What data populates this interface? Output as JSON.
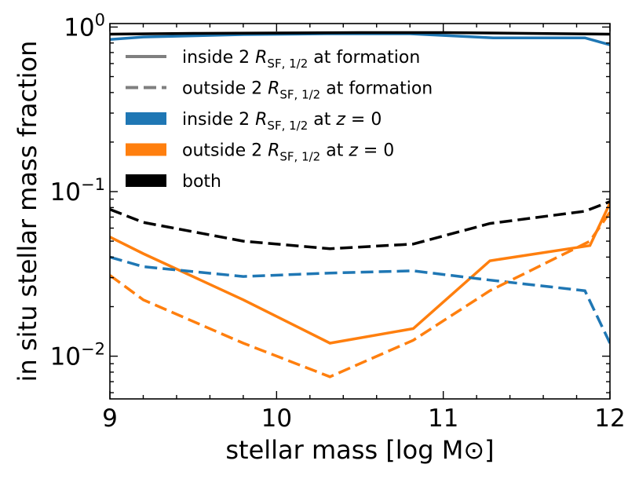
{
  "chart_data": {
    "type": "line",
    "xlabel": "stellar mass [log M⊙]",
    "ylabel": "in situ stellar mass fraction",
    "xlim": [
      9,
      12
    ],
    "ylim": [
      0.0055,
      1.05
    ],
    "yscale": "log",
    "x_ticks": [
      "9",
      "10",
      "11",
      "12"
    ],
    "y_ticks": [
      {
        "value": 1,
        "base": "10",
        "exp": "0"
      },
      {
        "value": 0.1,
        "base": "10",
        "exp": "−1"
      },
      {
        "value": 0.01,
        "base": "10",
        "exp": "−2"
      }
    ],
    "colors": {
      "blue": "#1f77b4",
      "orange": "#ff7f0e",
      "black": "#000000"
    },
    "series": [
      {
        "name": "inside at formation, inside at z=0",
        "color": "blue",
        "style": "solid",
        "x": [
          9.0,
          9.2,
          9.8,
          10.3,
          10.8,
          11.3,
          11.85,
          12.0
        ],
        "y": [
          0.84,
          0.87,
          0.9,
          0.91,
          0.91,
          0.86,
          0.86,
          0.78
        ]
      },
      {
        "name": "inside at formation, both",
        "color": "black",
        "style": "solid",
        "x": [
          9.0,
          9.5,
          10.0,
          10.5,
          11.0,
          11.5,
          12.0
        ],
        "y": [
          0.905,
          0.915,
          0.92,
          0.925,
          0.925,
          0.915,
          0.905
        ]
      },
      {
        "name": "inside at formation, outside at z=0",
        "color": "orange",
        "style": "solid",
        "x": [
          9.0,
          9.2,
          9.8,
          10.32,
          10.82,
          11.28,
          11.88,
          12.0
        ],
        "y": [
          0.053,
          0.042,
          0.022,
          0.012,
          0.0147,
          0.038,
          0.047,
          0.085
        ]
      },
      {
        "name": "outside at formation, both",
        "color": "black",
        "style": "dashed",
        "x": [
          9.0,
          9.2,
          9.8,
          10.32,
          10.82,
          11.28,
          11.85,
          12.0
        ],
        "y": [
          0.078,
          0.065,
          0.05,
          0.045,
          0.048,
          0.064,
          0.076,
          0.087
        ]
      },
      {
        "name": "outside at formation, inside at z=0",
        "color": "blue",
        "style": "dashed",
        "x": [
          9.0,
          9.2,
          9.8,
          10.32,
          10.82,
          11.28,
          11.85,
          12.0
        ],
        "y": [
          0.04,
          0.035,
          0.0305,
          0.032,
          0.033,
          0.029,
          0.025,
          0.012
        ]
      },
      {
        "name": "outside at formation, outside at z=0",
        "color": "orange",
        "style": "dashed",
        "x": [
          9.0,
          9.2,
          9.8,
          10.32,
          10.82,
          11.28,
          11.88,
          12.0
        ],
        "y": [
          0.031,
          0.022,
          0.012,
          0.0075,
          0.0125,
          0.025,
          0.05,
          0.075
        ]
      }
    ],
    "legend": {
      "placement": "upper-left",
      "entries": [
        {
          "prefix": "inside 2 ",
          "sub": "SF, 1/2",
          "suffix": " at formation",
          "swatch": "line-solid",
          "color": "#7f7f7f"
        },
        {
          "prefix": "outside 2 ",
          "sub": "SF, 1/2",
          "suffix": " at formation",
          "swatch": "line-dashed",
          "color": "#7f7f7f"
        },
        {
          "prefix": "inside 2 ",
          "sub": "SF, 1/2",
          "suffix": " at z = 0",
          "swatch": "patch",
          "color": "#1f77b4"
        },
        {
          "prefix": "outside 2 ",
          "sub": "SF, 1/2",
          "suffix": " at z = 0",
          "swatch": "patch",
          "color": "#ff7f0e"
        },
        {
          "prefix": "both",
          "sub": "",
          "suffix": "",
          "swatch": "patch",
          "color": "#000000"
        }
      ]
    }
  }
}
